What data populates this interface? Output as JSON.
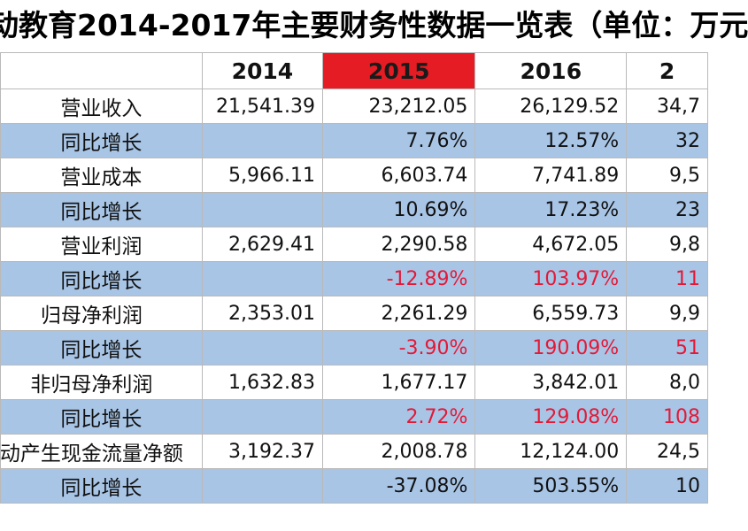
{
  "title": "动教育2014-2017年主要财务性数据一览表（单位：万元",
  "header": {
    "c0": "",
    "c1": "2014",
    "c2": "2015",
    "c3": "2016",
    "c4": "2"
  },
  "rows": [
    {
      "label": "营业收入",
      "v2014": "21,541.39",
      "v2015": "23,212.05",
      "v2016": "26,129.52",
      "v2017": "34,7"
    },
    {
      "label": "同比增长",
      "v2014": "",
      "v2015": "7.76%",
      "v2016": "12.57%",
      "v2017": "32"
    },
    {
      "label": "营业成本",
      "v2014": "5,966.11",
      "v2015": "6,603.74",
      "v2016": "7,741.89",
      "v2017": "9,5"
    },
    {
      "label": "同比增长",
      "v2014": "",
      "v2015": "10.69%",
      "v2016": "17.23%",
      "v2017": "23"
    },
    {
      "label": "营业利润",
      "v2014": "2,629.41",
      "v2015": "2,290.58",
      "v2016": "4,672.05",
      "v2017": "9,8"
    },
    {
      "label": "同比增长",
      "v2014": "",
      "v2015": "-12.89%",
      "v2016": "103.97%",
      "v2017": "11"
    },
    {
      "label": "归母净利润",
      "v2014": "2,353.01",
      "v2015": "2,261.29",
      "v2016": "6,559.73",
      "v2017": "9,9"
    },
    {
      "label": "同比增长",
      "v2014": "",
      "v2015": "-3.90%",
      "v2016": "190.09%",
      "v2017": "51"
    },
    {
      "label": "非归母净利润",
      "v2014": "1,632.83",
      "v2015": "1,677.17",
      "v2016": "3,842.01",
      "v2017": "8,0"
    },
    {
      "label": "同比增长",
      "v2014": "",
      "v2015": "2.72%",
      "v2016": "129.08%",
      "v2017": "108"
    },
    {
      "label": "动产生现金流量净额",
      "v2014": "3,192.37",
      "v2015": "2,008.78",
      "v2016": "12,124.00",
      "v2017": "24,5"
    },
    {
      "label": "同比增长",
      "v2014": "",
      "v2015": "-37.08%",
      "v2016": "503.55%",
      "v2017": "10"
    }
  ],
  "colors": {
    "highlight_header": "#e51c23",
    "yoy_row_bg": "#a8c5e6",
    "negative_growth_text": "#e31937"
  }
}
